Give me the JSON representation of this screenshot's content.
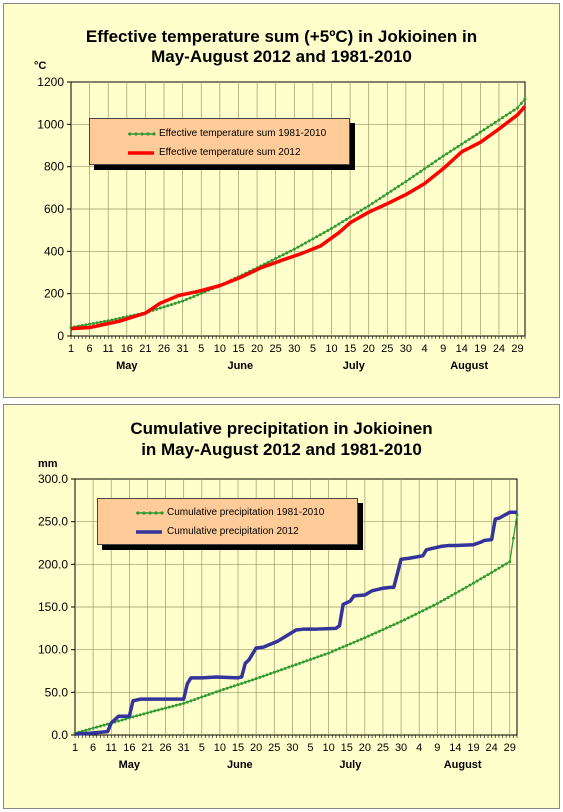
{
  "charts": [
    {
      "title_line1": "Effective temperature sum (+5ºC) in Jokioinen in",
      "title_line2": "May-August 2012 and 1981-2010",
      "unit": "°C",
      "months": [
        "May",
        "June",
        "July",
        "August"
      ],
      "legend": [
        "Effective temperature sum 1981-2010",
        "Effective temperature sum 2012"
      ]
    },
    {
      "title_line1": "Cumulative precipitation in Jokioinen",
      "title_line2": "in May-August 2012 and 1981-2010",
      "unit": "mm",
      "months": [
        "May",
        "June",
        "July",
        "August"
      ],
      "legend": [
        "Cumulative precipitation 1981-2010",
        "Cumulative precipitation 2012"
      ]
    }
  ],
  "colors": {
    "normal": "#339933",
    "temp2012": "#ff0000",
    "prec2012": "#333399",
    "plot_bg": "#ffffcc",
    "grid": "#999966"
  },
  "chart_data": [
    {
      "type": "line",
      "title": "Effective temperature sum (+5ºC) in Jokioinen in May-August 2012 and 1981-2010",
      "ylabel": "°C",
      "ylim": [
        0,
        1200
      ],
      "yticks": [
        "0",
        "200",
        "400",
        "600",
        "800",
        "1000",
        "1200"
      ],
      "xlim": [
        1,
        123
      ],
      "xtick_labels": [
        "1",
        "6",
        "11",
        "16",
        "21",
        "26",
        "31",
        "5",
        "10",
        "15",
        "20",
        "25",
        "30",
        "5",
        "10",
        "15",
        "20",
        "25",
        "30",
        "4",
        "9",
        "14",
        "19",
        "24",
        "29"
      ],
      "x_unit": "day from 1 May",
      "grid": true,
      "legend_position": "top-left",
      "series": [
        {
          "name": "Effective temperature sum 1981-2010",
          "x": [
            1,
            11,
            21,
            31,
            41,
            51,
            61,
            71,
            81,
            91,
            101,
            111,
            121,
            123
          ],
          "y": [
            40,
            72,
            110,
            165,
            238,
            322,
            410,
            508,
            615,
            730,
            850,
            963,
            1078,
            1120
          ]
        },
        {
          "name": "Effective temperature sum 2012",
          "x": [
            1,
            6,
            10,
            14,
            21,
            25,
            30,
            35,
            41,
            47,
            52,
            58,
            63,
            68,
            73,
            76,
            81,
            86,
            91,
            96,
            101,
            106,
            111,
            116,
            121,
            123
          ],
          "y": [
            35,
            40,
            55,
            70,
            108,
            155,
            192,
            210,
            238,
            280,
            322,
            360,
            390,
            425,
            488,
            535,
            585,
            625,
            668,
            720,
            790,
            870,
            915,
            978,
            1045,
            1085
          ]
        }
      ]
    },
    {
      "type": "line",
      "title": "Cumulative precipitation in Jokioinen in May-August 2012 and 1981-2010",
      "ylabel": "mm",
      "ylim": [
        0,
        300
      ],
      "yticks": [
        "0.0",
        "50.0",
        "100.0",
        "150.0",
        "200.0",
        "250.0",
        "300.0"
      ],
      "xlim": [
        1,
        123
      ],
      "xtick_labels": [
        "1",
        "6",
        "11",
        "16",
        "21",
        "26",
        "31",
        "5",
        "10",
        "15",
        "20",
        "25",
        "30",
        "5",
        "10",
        "15",
        "20",
        "25",
        "30",
        "4",
        "9",
        "14",
        "19",
        "24",
        "29"
      ],
      "x_unit": "day from 1 May",
      "grid": true,
      "legend_position": "top-left",
      "series": [
        {
          "name": "Cumulative precipitation 1981-2010",
          "x": [
            1,
            11,
            21,
            31,
            41,
            51,
            61,
            71,
            81,
            91,
            101,
            111,
            121,
            123
          ],
          "y": [
            2,
            14,
            26,
            37,
            52,
            66,
            81,
            96,
            114,
            133,
            154,
            178,
            203,
            258
          ]
        },
        {
          "name": "Cumulative precipitation 2012",
          "x": [
            1,
            5,
            10,
            11,
            13,
            16,
            17,
            19,
            31,
            32,
            33,
            36,
            40,
            46,
            47,
            48,
            49,
            51,
            53,
            57,
            62,
            64,
            67,
            73,
            74,
            75,
            77,
            78,
            81,
            83,
            84,
            86,
            88,
            89,
            91,
            93,
            97,
            98,
            99,
            102,
            104,
            106,
            111,
            113,
            114,
            116,
            117,
            118,
            121,
            123
          ],
          "y": [
            1,
            2,
            4,
            14,
            22,
            22,
            40,
            42,
            42,
            60,
            67,
            67,
            68,
            67,
            68,
            84,
            88,
            102,
            103,
            110,
            123,
            124,
            124,
            125,
            128,
            153,
            157,
            163,
            164,
            169,
            170,
            172,
            173,
            173,
            206,
            207,
            210,
            217,
            218,
            221,
            222,
            222,
            223,
            226,
            228,
            229,
            253,
            254,
            261,
            261
          ]
        }
      ]
    }
  ]
}
